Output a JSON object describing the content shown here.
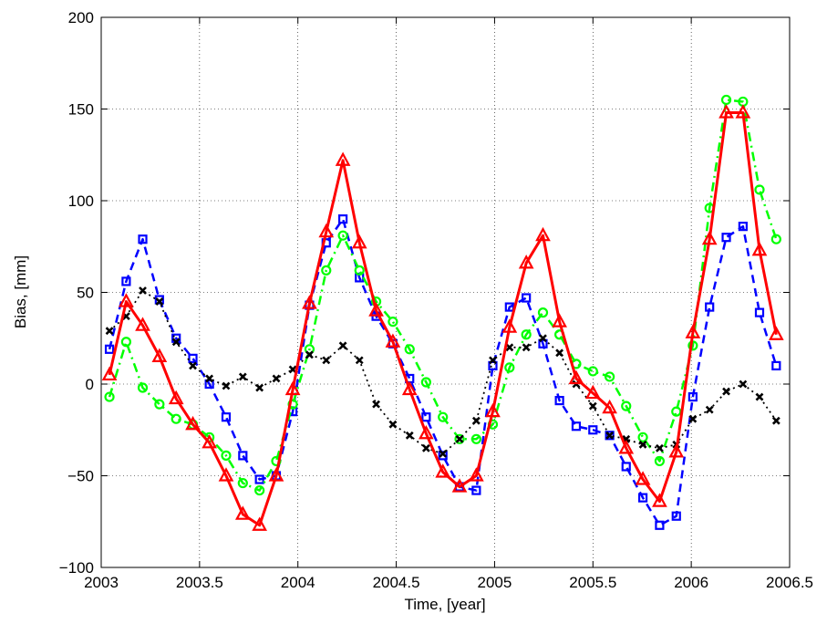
{
  "chart_data": {
    "type": "line",
    "xlabel": "Time, [year]",
    "ylabel": "Bias, [mm]",
    "x": [
      2003.042,
      2003.127,
      2003.211,
      2003.296,
      2003.381,
      2003.466,
      2003.55,
      2003.635,
      2003.72,
      2003.805,
      2003.89,
      2003.974,
      2004.059,
      2004.144,
      2004.229,
      2004.313,
      2004.398,
      2004.483,
      2004.568,
      2004.652,
      2004.737,
      2004.822,
      2004.907,
      2004.991,
      2005.076,
      2005.161,
      2005.246,
      2005.33,
      2005.415,
      2005.5,
      2005.585,
      2005.669,
      2005.754,
      2005.839,
      2005.924,
      2006.008,
      2006.093,
      2006.178,
      2006.263,
      2006.347,
      2006.432
    ],
    "series": [
      {
        "color": "#0000ff",
        "line_style": "dashed",
        "marker": "square",
        "values": [
          19,
          56,
          79,
          46,
          25,
          14,
          0,
          -18,
          -39,
          -52,
          -50,
          -15,
          43,
          77,
          90,
          58,
          37,
          22,
          3,
          -18,
          -39,
          -56,
          -58,
          10,
          42,
          47,
          22,
          -9,
          -23,
          -25,
          -28,
          -45,
          -62,
          -77,
          -72,
          -7,
          42,
          80,
          86,
          39,
          10
        ]
      },
      {
        "color": "#00ff00",
        "line_style": "dashdot",
        "marker": "circle",
        "values": [
          -7,
          23,
          -2,
          -11,
          -19,
          -22,
          -29,
          -39,
          -54,
          -58,
          -42,
          -11,
          19,
          62,
          81,
          62,
          45,
          34,
          19,
          1,
          -18,
          -30,
          -30,
          -22,
          9,
          27,
          39,
          27,
          11,
          7,
          4,
          -12,
          -29,
          -42,
          -15,
          21,
          96,
          155,
          154,
          106,
          79
        ]
      },
      {
        "color": "#000000",
        "line_style": "dotted",
        "marker": "x",
        "values": [
          29,
          37,
          51,
          45,
          23,
          10,
          3,
          -1,
          4,
          -2,
          3,
          8,
          16,
          13,
          21,
          13,
          -11,
          -22,
          -28,
          -35,
          -38,
          -30,
          -20,
          13,
          20,
          20,
          25,
          17,
          0,
          -12,
          -28,
          -30,
          -33,
          -35,
          -33,
          -19,
          -14,
          -4,
          0,
          -7,
          -20
        ]
      },
      {
        "color": "#ff0000",
        "line_style": "solid",
        "marker": "triangle",
        "values": [
          5,
          45,
          32,
          15,
          -8,
          -22,
          -32,
          -50,
          -71,
          -77,
          -50,
          -3,
          44,
          83,
          122,
          77,
          40,
          23,
          -3,
          -27,
          -48,
          -56,
          -50,
          -15,
          31,
          66,
          81,
          34,
          3,
          -5,
          -13,
          -35,
          -52,
          -64,
          -37,
          28,
          79,
          148,
          148,
          73,
          27
        ]
      }
    ],
    "xlim": [
      2003,
      2006.5
    ],
    "xticks": [
      2003,
      2003.5,
      2004,
      2004.5,
      2005,
      2005.5,
      2006,
      2006.5
    ],
    "ylim": [
      -100,
      200
    ],
    "yticks": [
      {
        "value": -100,
        "label": "−100"
      },
      {
        "value": -50,
        "label": "−50"
      },
      0,
      50,
      100,
      150,
      200
    ],
    "grid": true
  }
}
